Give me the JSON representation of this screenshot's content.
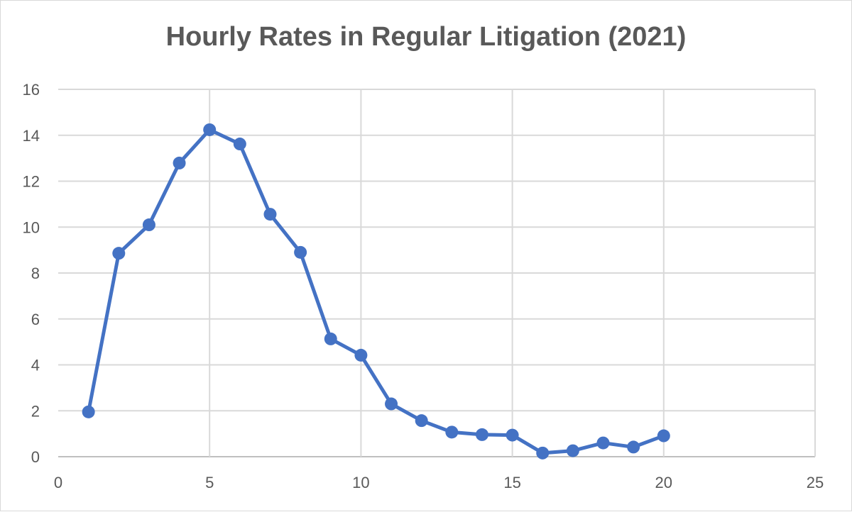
{
  "chart_data": {
    "type": "scatter",
    "title": "Hourly Rates in Regular Litigation (2021)",
    "xlabel": "",
    "ylabel": "",
    "xlim": [
      0,
      25
    ],
    "ylim": [
      0,
      16
    ],
    "x_ticks": [
      0,
      5,
      10,
      15,
      20,
      25
    ],
    "y_ticks": [
      0,
      2,
      4,
      6,
      8,
      10,
      12,
      14,
      16
    ],
    "grid": true,
    "legend": "none",
    "line_color": "#4472c4",
    "series": [
      {
        "x": [
          1,
          2,
          3,
          4,
          5,
          6,
          7,
          8,
          9,
          10,
          11,
          12,
          13,
          14,
          15,
          16,
          17,
          18,
          19,
          20
        ],
        "y": [
          1.95,
          8.86,
          10.1,
          12.79,
          14.24,
          13.62,
          10.56,
          8.9,
          5.13,
          4.42,
          2.3,
          1.57,
          1.07,
          0.96,
          0.94,
          0.16,
          0.26,
          0.6,
          0.42,
          0.91
        ]
      }
    ]
  }
}
